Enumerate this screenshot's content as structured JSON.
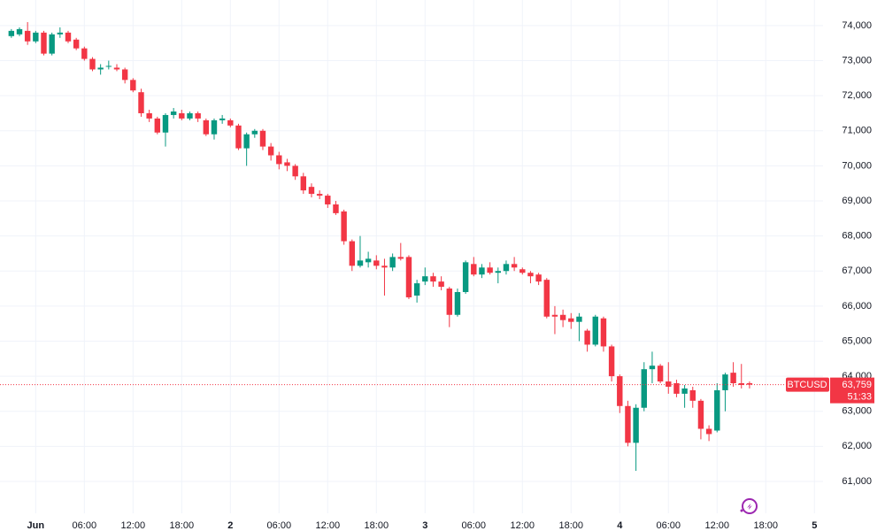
{
  "chart_data": {
    "type": "candlestick",
    "symbol": "BTCUSD",
    "last_price_label": "63,759",
    "last_price": 63759,
    "countdown": "51:33",
    "up_color": "#089981",
    "down_color": "#f23645",
    "grid": true,
    "xlim": [
      -4.4,
      104.7
    ],
    "ylim": [
      60090,
      74730
    ],
    "xticks": [
      {
        "value": 0,
        "label": "Jun"
      },
      {
        "value": 6,
        "label": "06:00"
      },
      {
        "value": 12,
        "label": "12:00"
      },
      {
        "value": 18,
        "label": "18:00"
      },
      {
        "value": 24,
        "label": "2"
      },
      {
        "value": 30,
        "label": "06:00"
      },
      {
        "value": 36,
        "label": "12:00"
      },
      {
        "value": 42,
        "label": "18:00"
      },
      {
        "value": 48,
        "label": "3"
      },
      {
        "value": 54,
        "label": "06:00"
      },
      {
        "value": 60,
        "label": "12:00"
      },
      {
        "value": 66,
        "label": "18:00"
      },
      {
        "value": 72,
        "label": "4"
      },
      {
        "value": 78,
        "label": "06:00"
      },
      {
        "value": 84,
        "label": "12:00"
      },
      {
        "value": 90,
        "label": "18:00"
      },
      {
        "value": 96,
        "label": "5"
      }
    ],
    "yticks": [
      {
        "value": 61000,
        "label": "61,000"
      },
      {
        "value": 62000,
        "label": "62,000"
      },
      {
        "value": 63000,
        "label": "63,000"
      },
      {
        "value": 64000,
        "label": "64,000"
      },
      {
        "value": 65000,
        "label": "65,000"
      },
      {
        "value": 66000,
        "label": "66,000"
      },
      {
        "value": 67000,
        "label": "67,000"
      },
      {
        "value": 68000,
        "label": "68,000"
      },
      {
        "value": 69000,
        "label": "69,000"
      },
      {
        "value": 70000,
        "label": "70,000"
      },
      {
        "value": 71000,
        "label": "71,000"
      },
      {
        "value": 72000,
        "label": "72,000"
      },
      {
        "value": 73000,
        "label": "73,000"
      },
      {
        "value": 74000,
        "label": "74,000"
      }
    ],
    "x": [
      -3,
      -2,
      -1,
      0,
      1,
      2,
      3,
      4,
      5,
      6,
      7,
      8,
      9,
      10,
      11,
      12,
      13,
      14,
      15,
      16,
      17,
      18,
      19,
      20,
      21,
      22,
      23,
      24,
      25,
      26,
      27,
      28,
      29,
      30,
      31,
      32,
      33,
      34,
      35,
      36,
      37,
      38,
      39,
      40,
      41,
      42,
      43,
      44,
      45,
      46,
      47,
      48,
      49,
      50,
      51,
      52,
      53,
      54,
      55,
      56,
      57,
      58,
      59,
      60,
      61,
      62,
      63,
      64,
      65,
      66,
      67,
      68,
      69,
      70,
      71,
      72,
      73,
      74,
      75,
      76,
      77,
      78,
      79,
      80,
      81,
      82,
      83,
      84,
      85,
      86,
      87,
      88
    ],
    "open": [
      73700,
      73750,
      73850,
      73550,
      73800,
      73200,
      73750,
      73800,
      73600,
      73350,
      73050,
      72750,
      72850,
      72800,
      72750,
      72450,
      72100,
      71500,
      71350,
      70950,
      71450,
      71500,
      71350,
      71500,
      71300,
      70900,
      71300,
      71300,
      71150,
      70500,
      70900,
      71000,
      70550,
      70300,
      70100,
      70000,
      69700,
      69400,
      69200,
      69150,
      68900,
      68700,
      67850,
      67150,
      67250,
      67300,
      67150,
      67100,
      67400,
      67400,
      66300,
      66700,
      66850,
      66700,
      66500,
      65750,
      66400,
      67200,
      66900,
      67100,
      66950,
      67000,
      67200,
      67050,
      66950,
      66900,
      66750,
      65750,
      65750,
      65650,
      65550,
      65300,
      64900,
      65650,
      64850,
      64000,
      63150,
      62100,
      63100,
      64200,
      64300,
      63850,
      63800,
      63500,
      63600,
      63300,
      62500,
      62450,
      63600,
      64100,
      63800,
      63800
    ],
    "high": [
      73900,
      73950,
      74100,
      73850,
      73850,
      73800,
      73950,
      73850,
      73650,
      73400,
      73100,
      72900,
      73000,
      72900,
      72800,
      72500,
      72200,
      71600,
      71400,
      71500,
      71650,
      71600,
      71550,
      71550,
      71350,
      71350,
      71450,
      71350,
      71200,
      70950,
      71050,
      71050,
      70650,
      70400,
      70200,
      70050,
      69800,
      69500,
      69300,
      69200,
      69000,
      68750,
      67900,
      68000,
      67550,
      67450,
      67350,
      67500,
      67800,
      67450,
      66750,
      67100,
      66950,
      66850,
      66550,
      66500,
      67300,
      67400,
      67200,
      67250,
      67100,
      67300,
      67400,
      67100,
      67000,
      66950,
      66800,
      66000,
      65900,
      65800,
      65800,
      65350,
      65750,
      65700,
      64900,
      64050,
      63300,
      63200,
      64400,
      64700,
      64350,
      64400,
      63900,
      63750,
      63700,
      63350,
      62600,
      63800,
      64100,
      64400,
      64350,
      63850
    ],
    "low": [
      73650,
      73700,
      73450,
      73500,
      73150,
      73150,
      73650,
      73500,
      73300,
      73000,
      72700,
      72600,
      72750,
      72700,
      72350,
      72100,
      71400,
      71250,
      70900,
      70550,
      71350,
      71300,
      71300,
      71250,
      70850,
      70750,
      71200,
      71100,
      70450,
      70000,
      70800,
      70450,
      70150,
      69900,
      69850,
      69600,
      69200,
      69100,
      69050,
      68800,
      68600,
      67750,
      67000,
      67100,
      67100,
      67050,
      66300,
      67000,
      67300,
      66200,
      66100,
      66600,
      66550,
      66450,
      65400,
      65700,
      66350,
      66850,
      66800,
      66900,
      66650,
      66900,
      67000,
      66900,
      66650,
      66600,
      65650,
      65200,
      65400,
      65350,
      65000,
      64700,
      64850,
      64700,
      63850,
      62950,
      62000,
      61300,
      63000,
      63800,
      63800,
      63500,
      63400,
      63100,
      63100,
      62200,
      62150,
      62400,
      63000,
      63700,
      63650,
      63650
    ],
    "close": [
      73850,
      73900,
      73550,
      73800,
      73200,
      73750,
      73800,
      73550,
      73350,
      73050,
      72750,
      72800,
      72850,
      72750,
      72450,
      72150,
      71500,
      71350,
      70950,
      71450,
      71550,
      71350,
      71500,
      71350,
      70900,
      71300,
      71350,
      71150,
      70500,
      70900,
      71000,
      70550,
      70300,
      70050,
      70000,
      69700,
      69300,
      69200,
      69150,
      68900,
      68650,
      67850,
      67150,
      67300,
      67350,
      67150,
      67100,
      67400,
      67350,
      66250,
      66650,
      66850,
      66700,
      66550,
      65750,
      66400,
      67250,
      66900,
      67100,
      66950,
      67000,
      67200,
      67100,
      66950,
      66850,
      66700,
      65700,
      65700,
      65600,
      65550,
      65700,
      64900,
      65700,
      64850,
      64000,
      63150,
      62100,
      63100,
      64200,
      64300,
      63850,
      63700,
      63500,
      63650,
      63300,
      62500,
      62350,
      63600,
      64050,
      63800,
      63750,
      63759
    ]
  }
}
